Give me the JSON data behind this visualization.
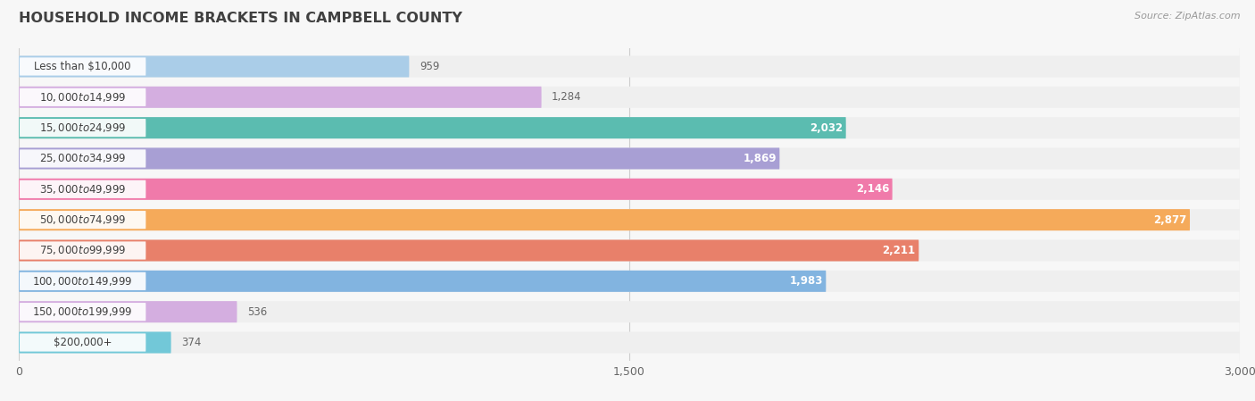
{
  "title": "Household Income Brackets in Campbell County",
  "title_upper": "HOUSEHOLD INCOME BRACKETS IN CAMPBELL COUNTY",
  "source": "Source: ZipAtlas.com",
  "categories": [
    "Less than $10,000",
    "$10,000 to $14,999",
    "$15,000 to $24,999",
    "$25,000 to $34,999",
    "$35,000 to $49,999",
    "$50,000 to $74,999",
    "$75,000 to $99,999",
    "$100,000 to $149,999",
    "$150,000 to $199,999",
    "$200,000+"
  ],
  "values": [
    959,
    1284,
    2032,
    1869,
    2146,
    2877,
    2211,
    1983,
    536,
    374
  ],
  "colors": [
    "#aacde8",
    "#d4aee0",
    "#5bbcb0",
    "#a89fd4",
    "#f07aaa",
    "#f5aa5a",
    "#e8806a",
    "#82b4e0",
    "#d4aee0",
    "#72c8d8"
  ],
  "xlim": [
    0,
    3000
  ],
  "xticks": [
    0,
    1500,
    3000
  ],
  "xtick_labels": [
    "0",
    "1,500",
    "3,000"
  ],
  "background_color": "#f7f7f7",
  "row_bg_color": "#efefef",
  "title_color": "#404040",
  "label_color": "#404040",
  "value_color_inside": "#ffffff",
  "value_color_outside": "#666666",
  "source_color": "#999999",
  "inside_threshold": 1500,
  "label_pill_color": "#ffffff",
  "label_pill_alpha": 0.92
}
